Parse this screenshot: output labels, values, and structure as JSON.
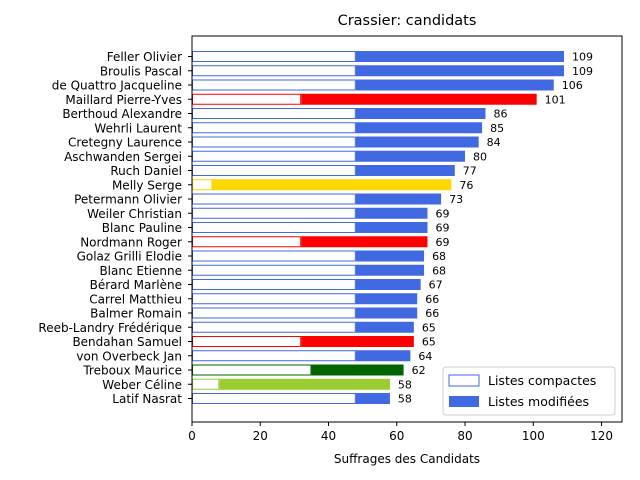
{
  "chart_data": {
    "type": "bar",
    "orientation": "horizontal",
    "title": "Crassier: candidats",
    "xlabel": "Suffrages des Candidats",
    "ylabel": "",
    "xlim": [
      0,
      126
    ],
    "xticks": [
      0,
      20,
      40,
      60,
      80,
      100,
      120
    ],
    "grid": false,
    "legend_position": "lower-right",
    "legend": [
      {
        "label": "Listes compactes",
        "style": "outline",
        "color": "#4169e1"
      },
      {
        "label": "Listes modifiées",
        "style": "filled",
        "color": "#4169e1"
      }
    ],
    "candidates": [
      {
        "name": "Feller Olivier",
        "total": 109,
        "compact": 48,
        "color": "#4169e1"
      },
      {
        "name": "Broulis Pascal",
        "total": 109,
        "compact": 48,
        "color": "#4169e1"
      },
      {
        "name": "de Quattro Jacqueline",
        "total": 106,
        "compact": 48,
        "color": "#4169e1"
      },
      {
        "name": "Maillard Pierre-Yves",
        "total": 101,
        "compact": 32,
        "color": "#ff0000"
      },
      {
        "name": "Berthoud Alexandre",
        "total": 86,
        "compact": 48,
        "color": "#4169e1"
      },
      {
        "name": "Wehrli Laurent",
        "total": 85,
        "compact": 48,
        "color": "#4169e1"
      },
      {
        "name": "Cretegny Laurence",
        "total": 84,
        "compact": 48,
        "color": "#4169e1"
      },
      {
        "name": "Aschwanden Sergei",
        "total": 80,
        "compact": 48,
        "color": "#4169e1"
      },
      {
        "name": "Ruch Daniel",
        "total": 77,
        "compact": 48,
        "color": "#4169e1"
      },
      {
        "name": "Melly Serge",
        "total": 76,
        "compact": 6,
        "color": "#ffd700"
      },
      {
        "name": "Petermann Olivier",
        "total": 73,
        "compact": 48,
        "color": "#4169e1"
      },
      {
        "name": "Weiler Christian",
        "total": 69,
        "compact": 48,
        "color": "#4169e1"
      },
      {
        "name": "Blanc Pauline",
        "total": 69,
        "compact": 48,
        "color": "#4169e1"
      },
      {
        "name": "Nordmann Roger",
        "total": 69,
        "compact": 32,
        "color": "#ff0000"
      },
      {
        "name": "Golaz Grilli Elodie",
        "total": 68,
        "compact": 48,
        "color": "#4169e1"
      },
      {
        "name": "Blanc Etienne",
        "total": 68,
        "compact": 48,
        "color": "#4169e1"
      },
      {
        "name": "Bérard Marlène",
        "total": 67,
        "compact": 48,
        "color": "#4169e1"
      },
      {
        "name": "Carrel Matthieu",
        "total": 66,
        "compact": 48,
        "color": "#4169e1"
      },
      {
        "name": "Balmer Romain",
        "total": 66,
        "compact": 48,
        "color": "#4169e1"
      },
      {
        "name": "Reeb-Landry Frédérique",
        "total": 65,
        "compact": 48,
        "color": "#4169e1"
      },
      {
        "name": "Bendahan Samuel",
        "total": 65,
        "compact": 32,
        "color": "#ff0000"
      },
      {
        "name": "von Overbeck Jan",
        "total": 64,
        "compact": 48,
        "color": "#4169e1"
      },
      {
        "name": "Treboux Maurice",
        "total": 62,
        "compact": 35,
        "color": "#006400"
      },
      {
        "name": "Weber Céline",
        "total": 58,
        "compact": 8,
        "color": "#9acd32"
      },
      {
        "name": "Latif Nasrat",
        "total": 58,
        "compact": 48,
        "color": "#4169e1"
      }
    ]
  }
}
